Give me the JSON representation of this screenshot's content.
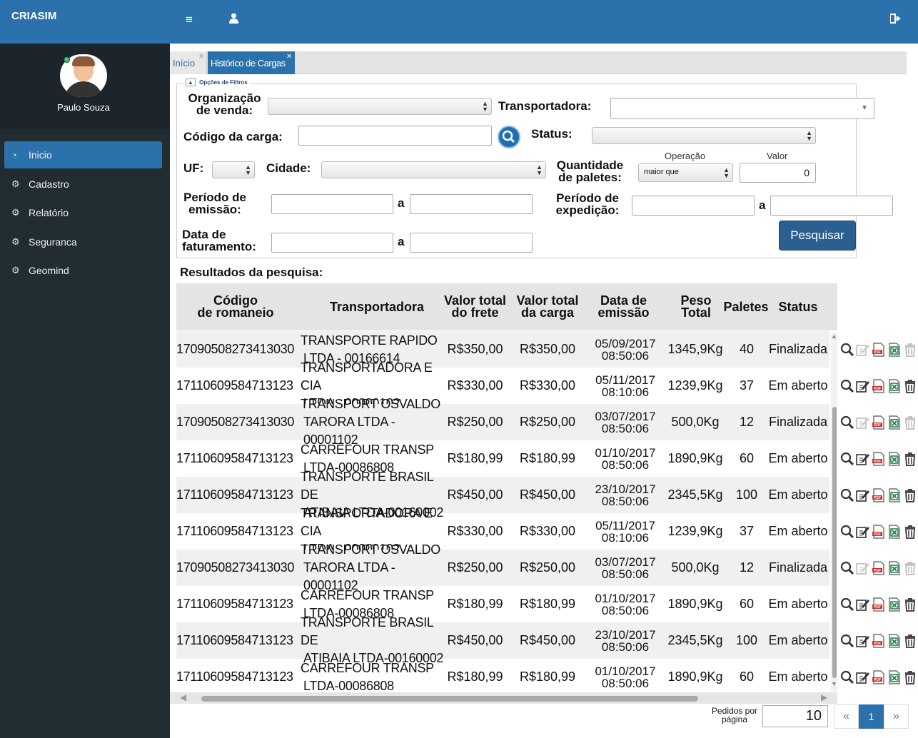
{
  "app": {
    "brand": "CRIASIM"
  },
  "header": {
    "menu_icon": "bars-icon",
    "user_icon": "user-icon",
    "logout_icon": "sign-out-icon"
  },
  "sidebar": {
    "user_name": "Paulo Souza",
    "items": [
      {
        "label": "Inicio",
        "icon": "dashboard-icon",
        "active": true
      },
      {
        "label": "Cadastro",
        "icon": "gears-icon"
      },
      {
        "label": "Relatório",
        "icon": "gears-icon"
      },
      {
        "label": "Seguranca",
        "icon": "gears-icon"
      },
      {
        "label": "Geomind",
        "icon": "gears-icon"
      }
    ]
  },
  "tabs": [
    {
      "label": "Início"
    },
    {
      "label": "Histórico de Cargas",
      "active": true
    }
  ],
  "filters": {
    "toggle_label": "Opções de Filtros",
    "org_venda_label_1": "Organização",
    "org_venda_label_2": "de venda:",
    "transportadora_label": "Transportadora:",
    "codigo_carga_label": "Código da carga:",
    "status_label": "Status:",
    "uf_label": "UF:",
    "cidade_label": "Cidade:",
    "qtd_paletes_label_1": "Quantidade",
    "qtd_paletes_label_2": "de paletes:",
    "operacao_label": "Operação",
    "operacao_value": "maior que",
    "valor_label": "Valor",
    "valor_value": "0",
    "periodo_emissao_label_1": "Período de",
    "periodo_emissao_label_2": "emissão:",
    "periodo_expedicao_label_1": "Período de",
    "periodo_expedicao_label_2": "expedição:",
    "data_fat_label_1": "Data de",
    "data_fat_label_2": "faturamento:",
    "range_sep": "a",
    "search_button": "Pesquisar"
  },
  "results": {
    "title": "Resultados da pesquisa:",
    "columns": [
      {
        "l1": "Código",
        "l2": "de romaneio"
      },
      {
        "l1": "Transportadora",
        "l2": ""
      },
      {
        "l1": "Valor total",
        "l2": "do frete"
      },
      {
        "l1": "Valor total",
        "l2": "da carga"
      },
      {
        "l1": "Data de",
        "l2": "emissão"
      },
      {
        "l1": "Peso",
        "l2": "Total"
      },
      {
        "l1": "Paletes",
        "l2": ""
      },
      {
        "l1": "Status",
        "l2": ""
      }
    ],
    "rows": [
      {
        "codigo": "17090508273413030",
        "transp1": "TRANSPORTE RAPIDO",
        "transp2": "LTDA - 00166614",
        "frete": "R$350,00",
        "carga": "R$350,00",
        "data1": "05/09/2017",
        "data2": "08:50:06",
        "peso": "1345,9Kg",
        "paletes": "40",
        "status": "Finalizada"
      },
      {
        "codigo": "17110609584713123",
        "transp1": "TRANSPORTADORA E CIA",
        "transp2": "LTDA - 00000102",
        "frete": "R$330,00",
        "carga": "R$330,00",
        "data1": "05/11/2017",
        "data2": "08:10:06",
        "peso": "1239,9Kg",
        "paletes": "37",
        "status": "Em aberto"
      },
      {
        "codigo": "17090508273413030",
        "transp1": "TRANSPORT OSVALDO",
        "transp2": "TARORA LTDA - 00001102",
        "frete": "R$250,00",
        "carga": "R$250,00",
        "data1": "03/07/2017",
        "data2": "08:50:06",
        "peso": "500,0Kg",
        "paletes": "12",
        "status": "Finalizada"
      },
      {
        "codigo": "17110609584713123",
        "transp1": "CARREFOUR TRANSP",
        "transp2": "LTDA-00086808",
        "frete": "R$180,99",
        "carga": "R$180,99",
        "data1": "01/10/2017",
        "data2": "08:50:06",
        "peso": "1890,9Kg",
        "paletes": "60",
        "status": "Em aberto"
      },
      {
        "codigo": "17110609584713123",
        "transp1": "TRANSPORTE BRASIL DE",
        "transp2": "ATIBAIA LTDA-00160002",
        "frete": "R$450,00",
        "carga": "R$450,00",
        "data1": "23/10/2017",
        "data2": "08:50:06",
        "peso": "2345,5Kg",
        "paletes": "100",
        "status": "Em aberto"
      },
      {
        "codigo": "17110609584713123",
        "transp1": "TRANSPORTADORA E CIA",
        "transp2": "LTDA - 00000102",
        "frete": "R$330,00",
        "carga": "R$330,00",
        "data1": "05/11/2017",
        "data2": "08:10:06",
        "peso": "1239,9Kg",
        "paletes": "37",
        "status": "Em aberto"
      },
      {
        "codigo": "17090508273413030",
        "transp1": "TRANSPORT OSVALDO",
        "transp2": "TARORA LTDA - 00001102",
        "frete": "R$250,00",
        "carga": "R$250,00",
        "data1": "03/07/2017",
        "data2": "08:50:06",
        "peso": "500,0Kg",
        "paletes": "12",
        "status": "Finalizada"
      },
      {
        "codigo": "17110609584713123",
        "transp1": "CARREFOUR TRANSP",
        "transp2": "LTDA-00086808",
        "frete": "R$180,99",
        "carga": "R$180,99",
        "data1": "01/10/2017",
        "data2": "08:50:06",
        "peso": "1890,9Kg",
        "paletes": "60",
        "status": "Em aberto"
      },
      {
        "codigo": "17110609584713123",
        "transp1": "TRANSPORTE BRASIL DE",
        "transp2": "ATIBAIA LTDA-00160002",
        "frete": "R$450,00",
        "carga": "R$450,00",
        "data1": "23/10/2017",
        "data2": "08:50:06",
        "peso": "2345,5Kg",
        "paletes": "100",
        "status": "Em aberto"
      },
      {
        "codigo": "17110609584713123",
        "transp1": "CARREFOUR TRANSP",
        "transp2": "LTDA-00086808",
        "frete": "R$180,99",
        "carga": "R$180,99",
        "data1": "01/10/2017",
        "data2": "08:50:06",
        "peso": "1890,9Kg",
        "paletes": "60",
        "status": "Em aberto"
      }
    ],
    "row_actions": [
      "magnifier-icon",
      "edit-icon",
      "pdf-icon",
      "excel-icon",
      "trash-icon"
    ]
  },
  "pagination": {
    "per_page_label_1": "Pedidos por",
    "per_page_label_2": "página",
    "per_page_value": "10",
    "prev": "«",
    "current": "1",
    "next": "»"
  },
  "colors": {
    "primary": "#2b72ac",
    "sidebar": "#222d32",
    "button": "#2b5f90"
  }
}
